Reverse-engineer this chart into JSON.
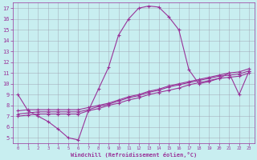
{
  "xlabel": "Windchill (Refroidissement éolien,°C)",
  "bg_color": "#c8eef0",
  "line_color": "#993399",
  "grid_color": "#9999aa",
  "xlim": [
    -0.5,
    23.5
  ],
  "ylim": [
    4.5,
    17.5
  ],
  "xticks": [
    0,
    1,
    2,
    3,
    4,
    5,
    6,
    7,
    8,
    9,
    10,
    11,
    12,
    13,
    14,
    15,
    16,
    17,
    18,
    19,
    20,
    21,
    22,
    23
  ],
  "yticks": [
    5,
    6,
    7,
    8,
    9,
    10,
    11,
    12,
    13,
    14,
    15,
    16,
    17
  ],
  "curve1_x": [
    0,
    1,
    2,
    3,
    4,
    5,
    6,
    7,
    8,
    9,
    10,
    11,
    12,
    13,
    14,
    15,
    16,
    17,
    18,
    19,
    20,
    21,
    22,
    23
  ],
  "curve1_y": [
    9.0,
    7.5,
    7.0,
    6.5,
    5.8,
    5.0,
    4.8,
    7.5,
    9.5,
    11.5,
    14.5,
    16.0,
    17.0,
    17.2,
    17.1,
    16.2,
    15.0,
    11.3,
    10.0,
    10.2,
    10.5,
    11.0,
    9.0,
    11.2
  ],
  "curve2_x": [
    0,
    1,
    2,
    3,
    4,
    5,
    6,
    7,
    8,
    9,
    10,
    11,
    12,
    13,
    14,
    15,
    16,
    17,
    18,
    19,
    20,
    21,
    22,
    23
  ],
  "curve2_y": [
    7.0,
    7.1,
    7.2,
    7.2,
    7.2,
    7.2,
    7.2,
    7.5,
    7.7,
    8.0,
    8.2,
    8.5,
    8.7,
    9.0,
    9.2,
    9.4,
    9.6,
    9.9,
    10.1,
    10.3,
    10.5,
    10.6,
    10.7,
    11.0
  ],
  "curve3_x": [
    0,
    1,
    2,
    3,
    4,
    5,
    6,
    7,
    8,
    9,
    10,
    11,
    12,
    13,
    14,
    15,
    16,
    17,
    18,
    19,
    20,
    21,
    22,
    23
  ],
  "curve3_y": [
    7.2,
    7.3,
    7.4,
    7.4,
    7.4,
    7.4,
    7.4,
    7.6,
    7.9,
    8.1,
    8.4,
    8.7,
    8.9,
    9.2,
    9.4,
    9.7,
    9.9,
    10.1,
    10.3,
    10.5,
    10.7,
    10.8,
    10.9,
    11.2
  ],
  "curve4_x": [
    0,
    1,
    2,
    3,
    4,
    5,
    6,
    7,
    8,
    9,
    10,
    11,
    12,
    13,
    14,
    15,
    16,
    17,
    18,
    19,
    20,
    21,
    22,
    23
  ],
  "curve4_y": [
    7.5,
    7.6,
    7.6,
    7.6,
    7.6,
    7.6,
    7.6,
    7.8,
    8.0,
    8.2,
    8.5,
    8.8,
    9.0,
    9.3,
    9.5,
    9.8,
    10.0,
    10.2,
    10.4,
    10.6,
    10.8,
    11.0,
    11.1,
    11.4
  ]
}
